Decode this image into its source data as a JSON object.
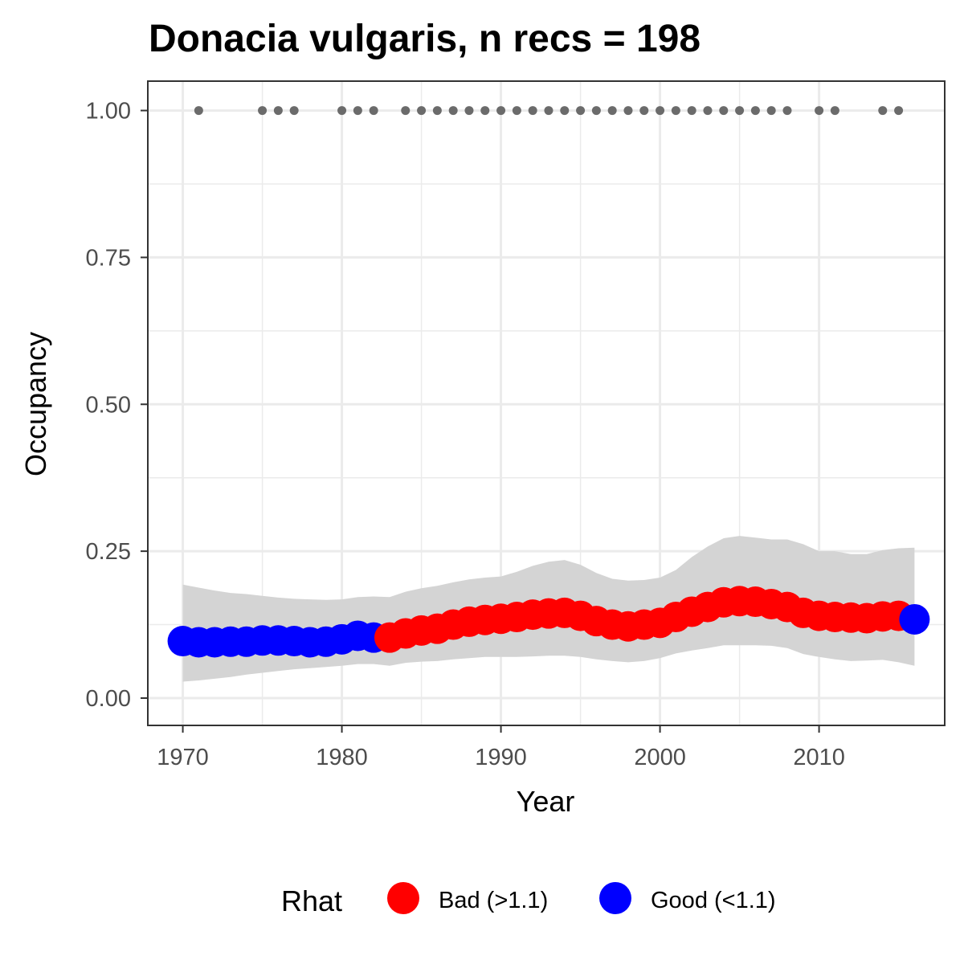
{
  "chart_data": {
    "type": "scatter",
    "title": "Donacia vulgaris, n recs = 198",
    "xlabel": "Year",
    "ylabel": "Occupancy",
    "xlim": [
      1967.8,
      2017.9
    ],
    "ylim": [
      -0.0465,
      1.05
    ],
    "x_ticks": [
      1970,
      1980,
      1990,
      2000,
      2010
    ],
    "x_tick_labels": [
      "1970",
      "1980",
      "1990",
      "2000",
      "2010"
    ],
    "y_ticks": [
      0,
      0.25,
      0.5,
      0.75,
      1.0
    ],
    "y_tick_labels": [
      "0.00",
      "0.25",
      "0.50",
      "0.75",
      "1.00"
    ],
    "grid": true,
    "legend": {
      "title": "Rhat",
      "placement": "bottom",
      "entries": [
        {
          "label": "Bad (>1.1)",
          "color": "#ff0000"
        },
        {
          "label": "Good (<1.1)",
          "color": "#0000ff"
        }
      ]
    },
    "occupancy": {
      "years": [
        1970,
        1971,
        1972,
        1973,
        1974,
        1975,
        1976,
        1977,
        1978,
        1979,
        1980,
        1981,
        1982,
        1983,
        1984,
        1985,
        1986,
        1987,
        1988,
        1989,
        1990,
        1991,
        1992,
        1993,
        1994,
        1995,
        1996,
        1997,
        1998,
        1999,
        2000,
        2001,
        2002,
        2003,
        2004,
        2005,
        2006,
        2007,
        2008,
        2009,
        2010,
        2011,
        2012,
        2013,
        2014,
        2015,
        2016
      ],
      "mean": [
        0.097,
        0.095,
        0.095,
        0.096,
        0.096,
        0.098,
        0.098,
        0.097,
        0.095,
        0.096,
        0.1,
        0.106,
        0.103,
        0.103,
        0.11,
        0.115,
        0.118,
        0.125,
        0.13,
        0.133,
        0.135,
        0.138,
        0.142,
        0.144,
        0.145,
        0.14,
        0.131,
        0.125,
        0.122,
        0.125,
        0.128,
        0.138,
        0.147,
        0.155,
        0.163,
        0.165,
        0.164,
        0.16,
        0.155,
        0.145,
        0.14,
        0.138,
        0.137,
        0.136,
        0.139,
        0.14,
        0.134
      ],
      "lower": [
        0.028,
        0.03,
        0.033,
        0.036,
        0.04,
        0.043,
        0.046,
        0.049,
        0.051,
        0.053,
        0.055,
        0.058,
        0.058,
        0.055,
        0.06,
        0.062,
        0.063,
        0.066,
        0.068,
        0.07,
        0.07,
        0.07,
        0.071,
        0.072,
        0.072,
        0.07,
        0.066,
        0.063,
        0.061,
        0.063,
        0.068,
        0.076,
        0.081,
        0.085,
        0.09,
        0.09,
        0.09,
        0.089,
        0.085,
        0.075,
        0.07,
        0.066,
        0.063,
        0.064,
        0.065,
        0.061,
        0.055
      ],
      "upper": [
        0.193,
        0.188,
        0.183,
        0.179,
        0.177,
        0.174,
        0.171,
        0.169,
        0.168,
        0.167,
        0.168,
        0.172,
        0.173,
        0.172,
        0.181,
        0.187,
        0.191,
        0.197,
        0.202,
        0.205,
        0.207,
        0.215,
        0.225,
        0.232,
        0.235,
        0.227,
        0.213,
        0.203,
        0.2,
        0.201,
        0.205,
        0.218,
        0.24,
        0.258,
        0.272,
        0.276,
        0.273,
        0.27,
        0.27,
        0.262,
        0.25,
        0.25,
        0.245,
        0.245,
        0.252,
        0.255,
        0.256
      ],
      "rhat_status": [
        "Good",
        "Good",
        "Good",
        "Good",
        "Good",
        "Good",
        "Good",
        "Good",
        "Good",
        "Good",
        "Good",
        "Good",
        "Good",
        "Bad",
        "Bad",
        "Bad",
        "Bad",
        "Bad",
        "Bad",
        "Bad",
        "Bad",
        "Bad",
        "Bad",
        "Bad",
        "Bad",
        "Bad",
        "Bad",
        "Bad",
        "Bad",
        "Bad",
        "Bad",
        "Bad",
        "Bad",
        "Bad",
        "Bad",
        "Bad",
        "Bad",
        "Bad",
        "Bad",
        "Bad",
        "Bad",
        "Bad",
        "Bad",
        "Bad",
        "Bad",
        "Bad",
        "Good"
      ]
    },
    "records": {
      "years": [
        1971,
        1975,
        1976,
        1977,
        1980,
        1981,
        1982,
        1984,
        1985,
        1986,
        1987,
        1988,
        1989,
        1990,
        1991,
        1992,
        1993,
        1994,
        1995,
        1996,
        1997,
        1998,
        1999,
        2000,
        2001,
        2002,
        2003,
        2004,
        2005,
        2006,
        2007,
        2008,
        2010,
        2011,
        2014,
        2015
      ],
      "value": 1.0
    },
    "colors": {
      "bad": "#ff0000",
      "good": "#0000ff",
      "ribbon": "#d4d4d4",
      "record_points": "#6b6b6b",
      "grid": "#ebebeb",
      "panel_border": "#333333"
    }
  }
}
